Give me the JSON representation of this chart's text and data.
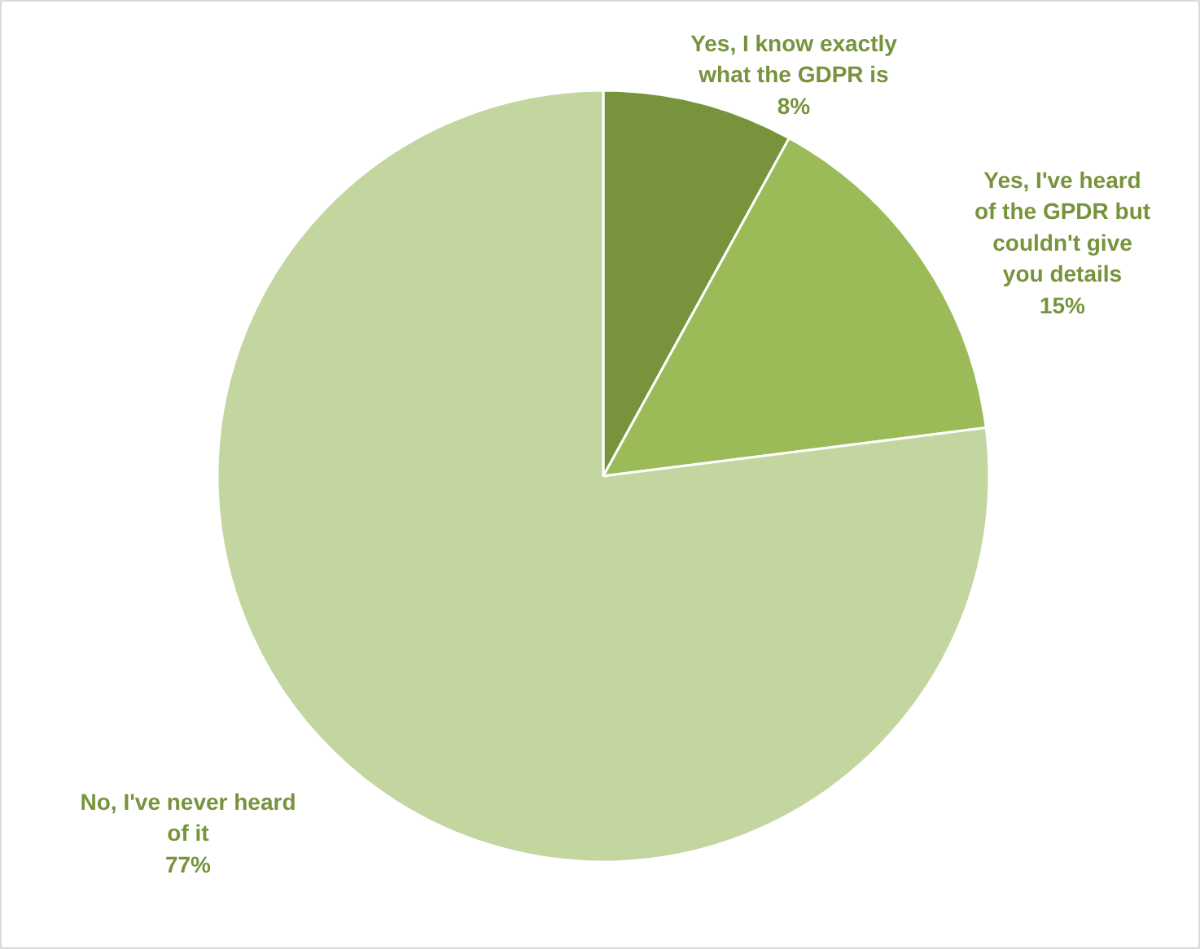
{
  "chart_data": {
    "type": "pie",
    "categories": [
      "Yes, I know exactly what the GDPR is",
      "Yes, I've heard of the GPDR but couldn't give you details",
      "No, I've never heard of it"
    ],
    "values": [
      8,
      15,
      77
    ],
    "colors": [
      "#77933c",
      "#9bbb59",
      "#c4d6a0"
    ],
    "value_labels": [
      "8%",
      "15%",
      "77%"
    ]
  }
}
